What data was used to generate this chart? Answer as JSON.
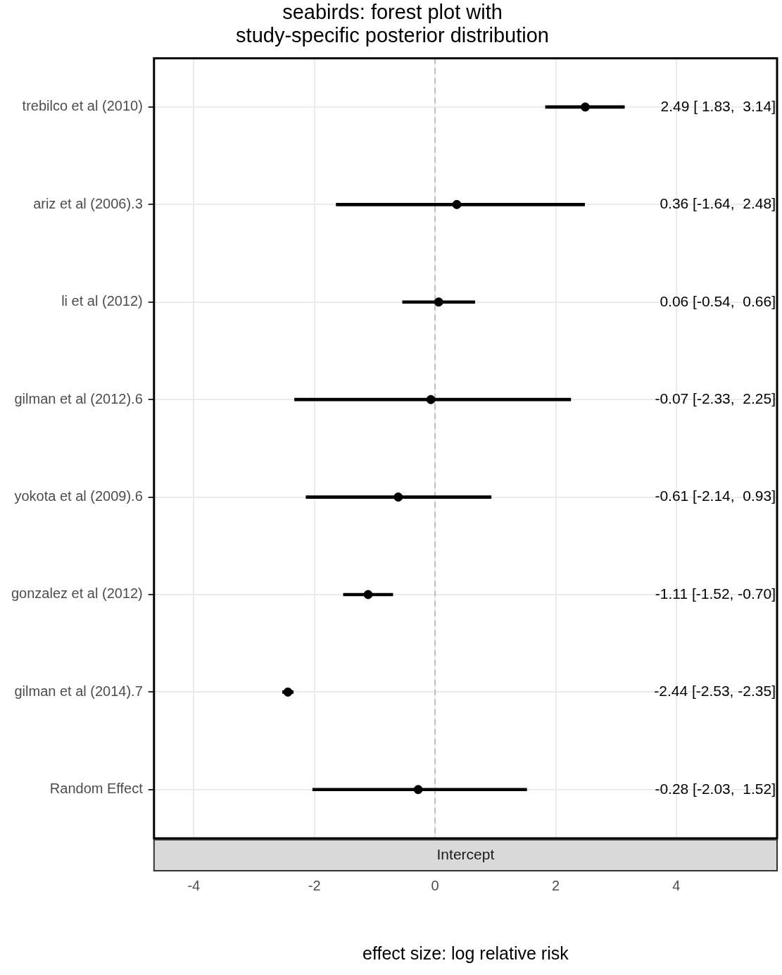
{
  "chart_data": {
    "type": "bar",
    "orientation": "horizontal",
    "title": "seabirds: forest plot with\nstudy-specific posterior distribution",
    "xlabel": "effect size: log relative risk",
    "xlim": [
      -4.66,
      5.67
    ],
    "xticks": [
      -4,
      -2,
      0,
      2,
      4
    ],
    "categories": [
      "trebilco et al (2010)",
      "ariz et al (2006).3",
      "li et al (2012)",
      "gilman et al (2012).6",
      "yokota et al (2009).6",
      "gonzalez et al (2012)",
      "gilman et al (2014).7",
      "Random Effect"
    ],
    "grid": true,
    "legend": false,
    "marker": "circle",
    "ref_lines": [
      {
        "axis": "x",
        "value": 0,
        "color": "#bdbdbd",
        "line_style": "dashed"
      }
    ],
    "annotations": [
      "Intercept",
      "2.49 [ 1.83,  3.14]",
      "0.36 [-1.64,  2.48]",
      "0.06 [-0.54,  0.66]",
      "-0.07 [-2.33,  2.25]",
      "-0.61 [-2.14,  0.93]",
      "-1.11 [-1.52, -0.70]",
      "-2.44 [-2.53, -2.35]",
      "-0.28 [-2.03,  1.52]"
    ],
    "series": [
      {
        "color": "#000000",
        "base": [
          1.83,
          -1.64,
          -0.54,
          -2.33,
          -2.14,
          -1.52,
          -2.53,
          -2.03
        ],
        "values": [
          1.31,
          4.12,
          1.2,
          4.58,
          3.07,
          0.82,
          0.18,
          3.55
        ]
      },
      {
        "type": "scatter",
        "color": "#000000",
        "x": [
          "trebilco et al (2010)",
          "ariz et al (2006).3",
          "li et al (2012)",
          "gilman et al (2012).6",
          "yokota et al (2009).6",
          "gonzalez et al (2012)",
          "gilman et al (2014).7",
          "Random Effect"
        ],
        "values": [
          2.49,
          0.36,
          0.06,
          -0.07,
          -0.61,
          -1.11,
          -2.44,
          -0.28
        ]
      }
    ]
  }
}
